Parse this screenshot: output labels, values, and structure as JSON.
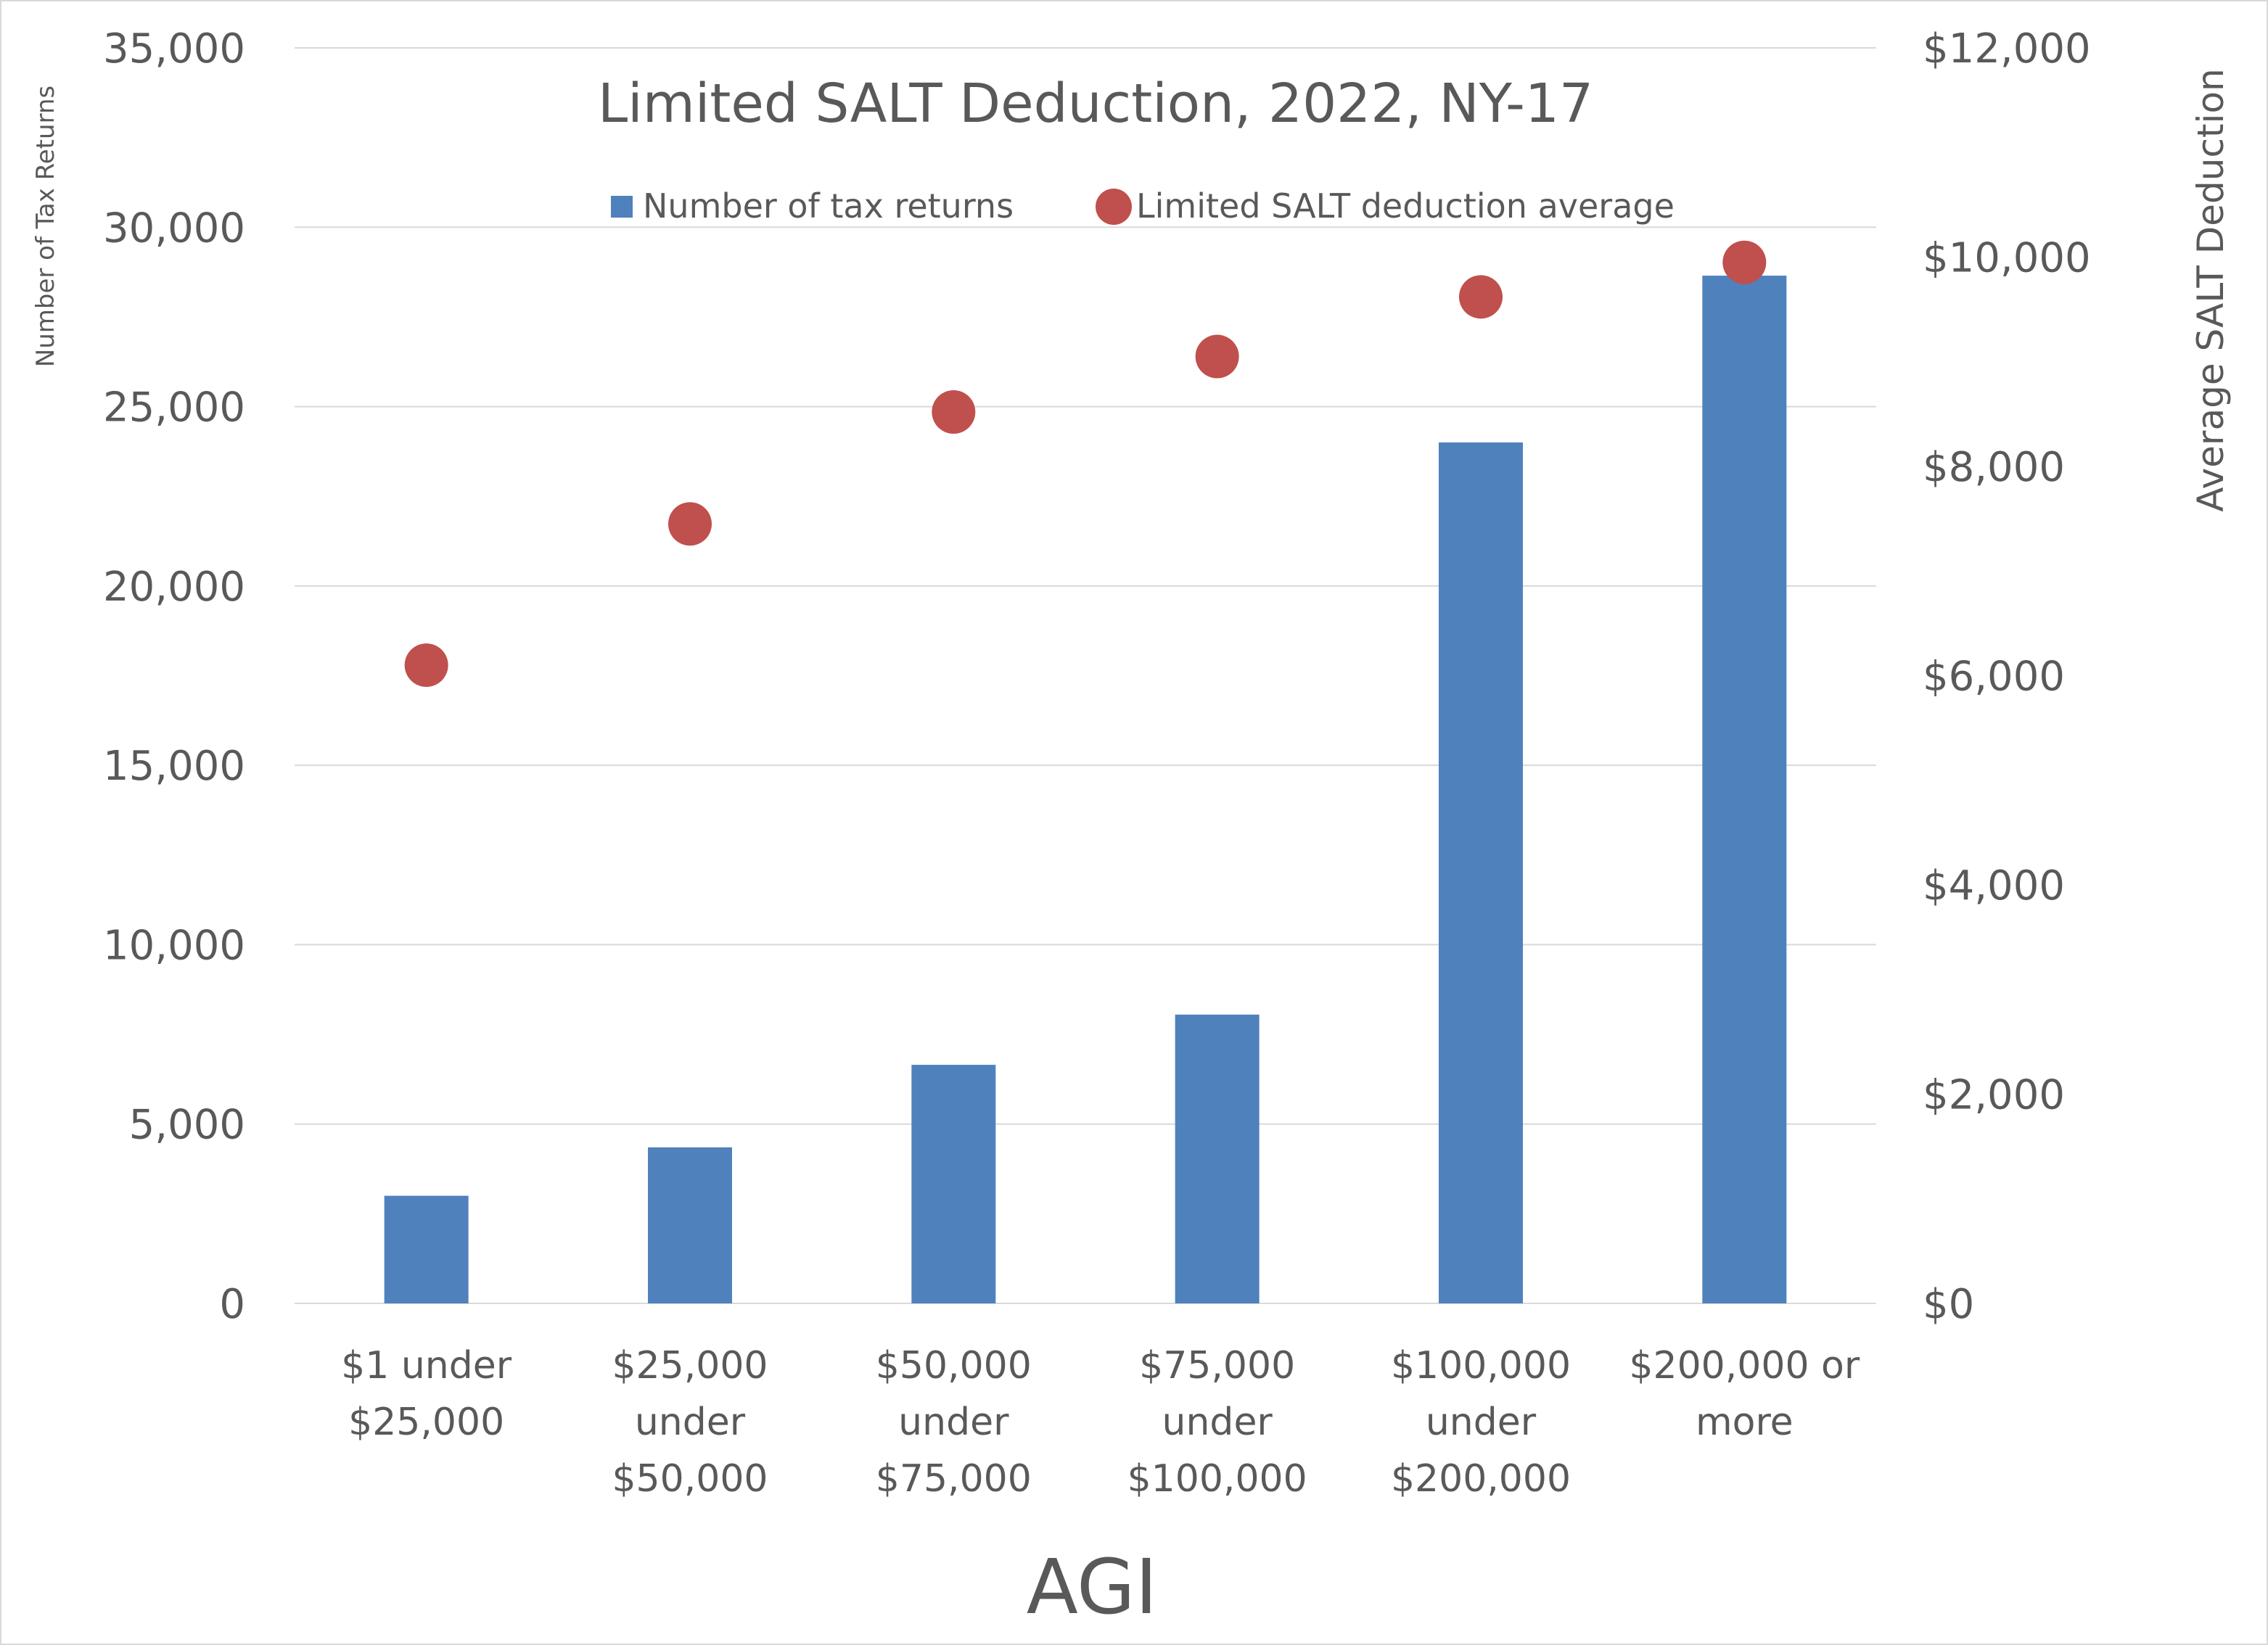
{
  "chart_data": {
    "type": "bar",
    "title": "Limited SALT Deduction, 2022, NY-17",
    "xlabel": "AGI",
    "ylabel_left": "Number of Tax Returns",
    "ylabel_right": "Average SALT Deduction",
    "categories": [
      [
        "$1 under",
        "$25,000"
      ],
      [
        "$25,000",
        "under",
        "$50,000"
      ],
      [
        "$50,000",
        "under",
        "$75,000"
      ],
      [
        "$75,000",
        "under",
        "$100,000"
      ],
      [
        "$100,000",
        "under",
        "$200,000"
      ],
      [
        "$200,000 or",
        "more"
      ]
    ],
    "series": [
      {
        "name": "Number of tax returns",
        "kind": "bar",
        "axis": "left",
        "color": "#4f81bd",
        "values": [
          3000,
          4350,
          6650,
          8050,
          24000,
          28650
        ]
      },
      {
        "name": "Limited SALT deduction average",
        "kind": "scatter",
        "axis": "right",
        "color": "#c0504d",
        "values": [
          6100,
          7450,
          8520,
          9050,
          9620,
          9950
        ]
      }
    ],
    "ylim_left": [
      0,
      35000
    ],
    "ylim_right": [
      0,
      12000
    ],
    "yticks_left": [
      "0",
      "5,000",
      "10,000",
      "15,000",
      "20,000",
      "25,000",
      "30,000",
      "35,000"
    ],
    "yticks_right": [
      "$0",
      "$2,000",
      "$4,000",
      "$6,000",
      "$8,000",
      "$10,000",
      "$12,000"
    ],
    "grid": true,
    "legend_position": "top-center"
  }
}
